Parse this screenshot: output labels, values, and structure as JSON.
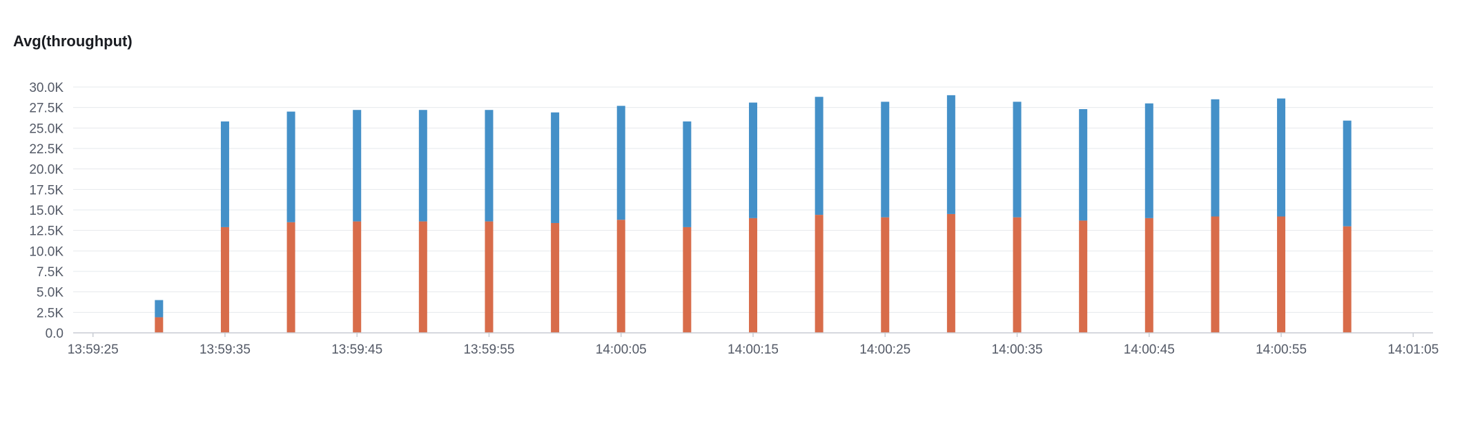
{
  "panel": {
    "title": "Avg(throughput)"
  },
  "chart_data": {
    "type": "bar",
    "stacked": true,
    "title": "Avg(throughput)",
    "xlabel": "",
    "ylabel": "",
    "ylim": [
      0,
      30000
    ],
    "y_ticks": [
      0,
      2500,
      5000,
      7500,
      10000,
      12500,
      15000,
      17500,
      20000,
      22500,
      25000,
      27500,
      30000
    ],
    "y_tick_labels": [
      "0.0",
      "2.5K",
      "5.0K",
      "7.5K",
      "10.0K",
      "12.5K",
      "15.0K",
      "17.5K",
      "20.0K",
      "22.5K",
      "25.0K",
      "27.5K",
      "30.0K"
    ],
    "x_tick_labels": [
      "13:59:25",
      "13:59:35",
      "13:59:45",
      "13:59:55",
      "14:00:05",
      "14:00:15",
      "14:00:25",
      "14:00:35",
      "14:00:45",
      "14:00:55",
      "14:01:05"
    ],
    "x_range_seconds": [
      -1.5,
      101.5
    ],
    "x_tick_seconds": [
      0,
      10,
      20,
      30,
      40,
      50,
      60,
      70,
      80,
      90,
      100
    ],
    "x": [
      "13:59:30",
      "13:59:35",
      "13:59:40",
      "13:59:45",
      "13:59:50",
      "13:59:55",
      "14:00:00",
      "14:00:05",
      "14:00:10",
      "14:00:15",
      "14:00:20",
      "14:00:25",
      "14:00:30",
      "14:00:35",
      "14:00:40",
      "14:00:45",
      "14:00:50",
      "14:00:55",
      "14:01:00"
    ],
    "series": [
      {
        "color": "#d86c4a",
        "values": [
          1900,
          12900,
          13500,
          13600,
          13600,
          13600,
          13400,
          13800,
          12900,
          14000,
          14400,
          14100,
          14500,
          14100,
          13700,
          14000,
          14200,
          14200,
          13000
        ]
      },
      {
        "color": "#4490c8",
        "values": [
          2100,
          12900,
          13500,
          13600,
          13600,
          13600,
          13500,
          13900,
          12900,
          14100,
          14400,
          14100,
          14500,
          14100,
          13600,
          14000,
          14300,
          14400,
          12900
        ]
      }
    ],
    "grid": true,
    "legend": "none"
  }
}
